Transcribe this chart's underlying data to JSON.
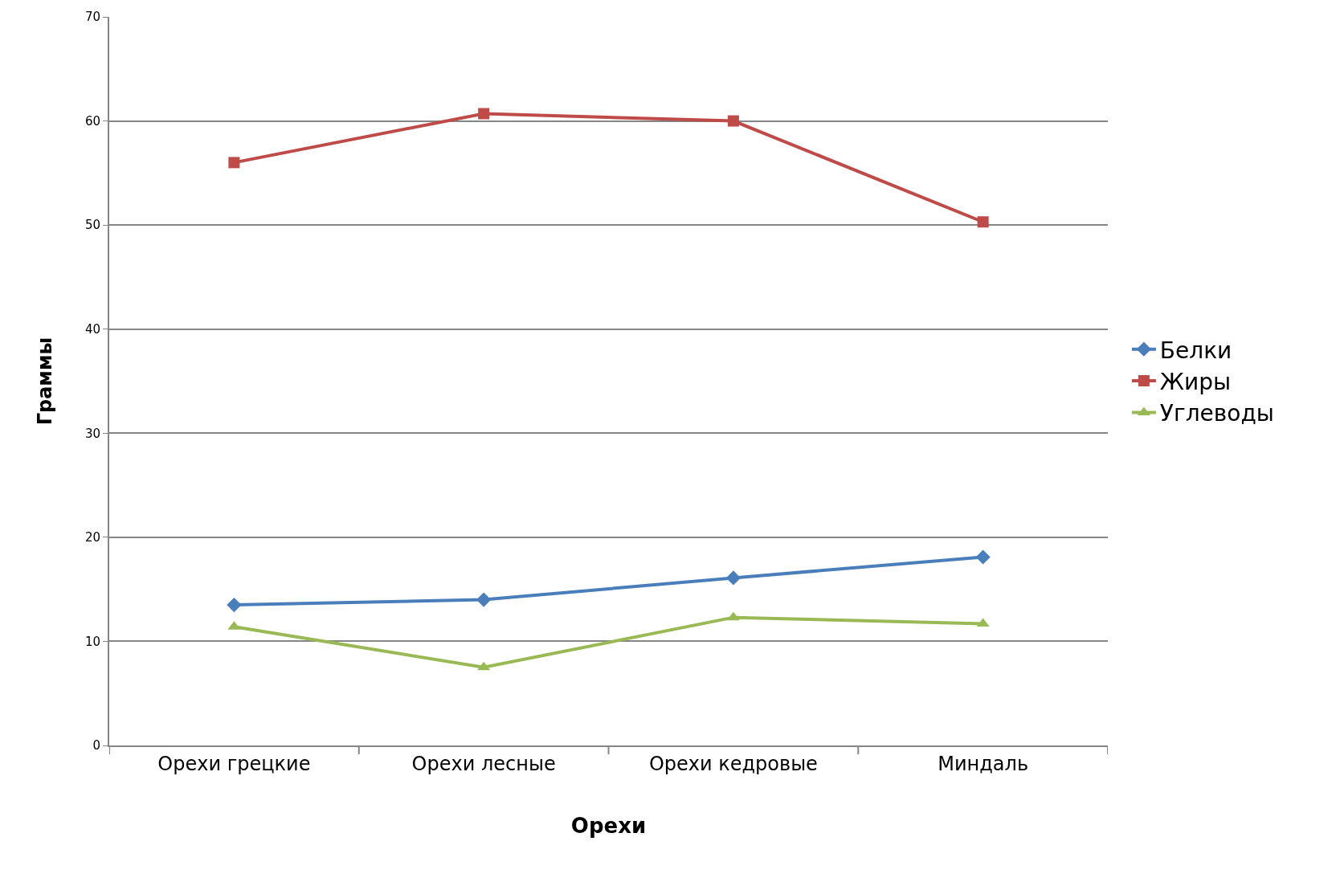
{
  "chart_data": {
    "type": "line",
    "xlabel": "Орехи",
    "ylabel": "Граммы",
    "categories": [
      "Орехи грецкие",
      "Орехи лесные",
      "Орехи кедровые",
      "Миндаль"
    ],
    "series": [
      {
        "name": "Белки",
        "color": "#4a7ebb",
        "marker": "diamond",
        "values": [
          13.5,
          14.0,
          16.1,
          18.1
        ]
      },
      {
        "name": "Жиры",
        "color": "#be4b48",
        "marker": "square",
        "values": [
          56,
          60.7,
          60,
          50.3
        ]
      },
      {
        "name": "Углеводы",
        "color": "#98b954",
        "marker": "triangle",
        "values": [
          11.4,
          7.5,
          12.3,
          11.7
        ]
      }
    ],
    "ylim": [
      0,
      70
    ],
    "yticks": [
      0,
      10,
      20,
      30,
      40,
      50,
      60,
      70
    ],
    "grid": "y",
    "legend": "right"
  }
}
